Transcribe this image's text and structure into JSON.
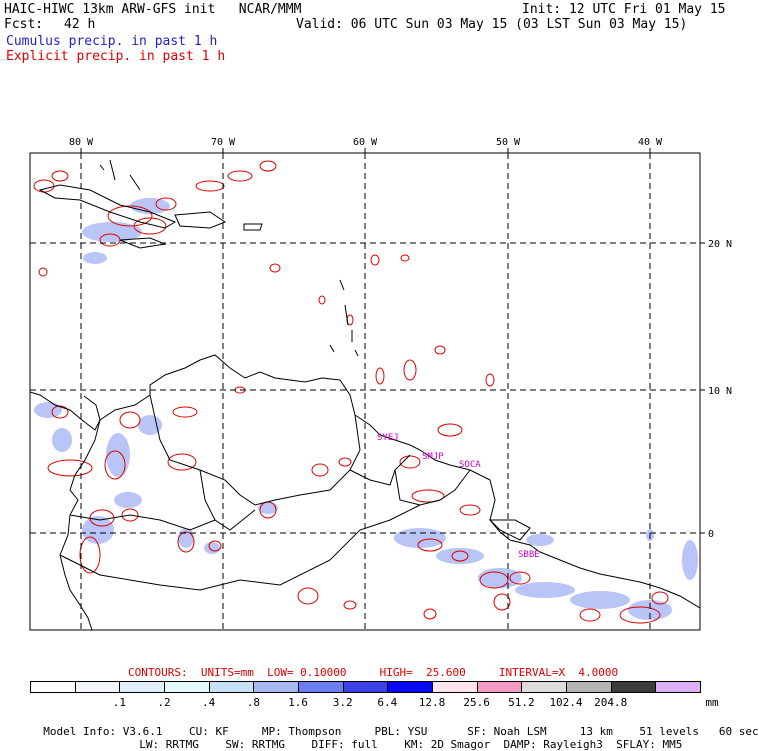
{
  "header": {
    "title": "HAIC-HIWC 13km ARW-GFS init   NCAR/MMM",
    "init": "Init: 12 UTC Fri 01 May 15",
    "fcst_label": "Fcst:",
    "fcst_value": "42 h",
    "valid": "Valid: 06 UTC Sun 03 May 15 (03 LST Sun 03 May 15)",
    "cumulus": "Cumulus precip. in past 1 h",
    "explicit": "Explicit precip. in past 1 h"
  },
  "map": {
    "lon_labels": [
      "80 W",
      "70 W",
      "60 W",
      "50 W",
      "40 W"
    ],
    "lat_labels": [
      "20 N",
      "10 N",
      "0"
    ],
    "stations": [
      "SYEJ",
      "SMJP",
      "SOCA",
      "SBBE"
    ],
    "colors": {
      "cumulus": "#4466ee",
      "explicit": "#dd0000",
      "station": "#cc00cc"
    }
  },
  "contours": {
    "label": "CONTOURS:  UNITS=mm  LOW= 0.10000     HIGH=  25.600     INTERVAL=X  4.0000"
  },
  "colorbar": {
    "boxes": [
      {
        "color": "#ffffff"
      },
      {
        "color": "#f2f6fb"
      },
      {
        "color": "#dfeefa"
      },
      {
        "color": "#e4fbfb"
      },
      {
        "color": "#c6e0f5"
      },
      {
        "color": "#a9b7f2"
      },
      {
        "color": "#6b7ef0"
      },
      {
        "color": "#3b41e6"
      },
      {
        "color": "#0a0af0"
      },
      {
        "color": "#ffe4ee"
      },
      {
        "color": "#f59ac4"
      },
      {
        "color": "#dcdcdc"
      },
      {
        "color": "#b4b4b4"
      },
      {
        "color": "#3c3c3c"
      },
      {
        "color": "#ddb0f5"
      }
    ],
    "tick_labels": [
      ".1",
      ".2",
      ".4",
      ".8",
      "1.6",
      "3.2",
      "6.4",
      "12.8",
      "25.6",
      "51.2",
      "102.4",
      "204.8"
    ],
    "unit": "mm"
  },
  "footer": {
    "line1": [
      "Model Info: V3.6.1",
      "CU: KF",
      "MP: Thompson",
      "PBL: YSU",
      "SF: Noah LSM",
      "13 km",
      "51 levels",
      "60 sec"
    ],
    "line2": [
      "LW: RRTMG",
      "SW: RRTMG",
      "DIFF: full",
      "KM: 2D Smagor",
      "DAMP: Rayleigh3",
      "SFLAY: MM5"
    ]
  }
}
